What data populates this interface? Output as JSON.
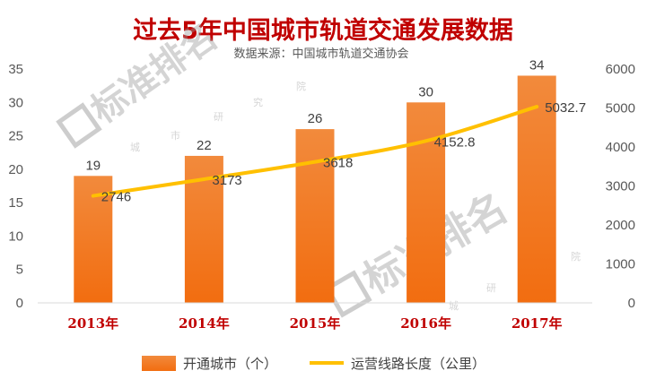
{
  "chart_data": {
    "type": "bar",
    "title": "过去5年中国城市轨道交通发展数据",
    "subtitle": "数据来源：中国城市轨道交通协会",
    "categories": [
      "2013年",
      "2014年",
      "2015年",
      "2016年",
      "2017年"
    ],
    "series": [
      {
        "name": "开通城市（个）",
        "type": "bar",
        "axis": "left",
        "values": [
          19,
          22,
          26,
          30,
          34
        ],
        "color": "#ed7d31"
      },
      {
        "name": "运营线路长度（公里）",
        "type": "line",
        "axis": "right",
        "values": [
          2746,
          3173,
          3618,
          4152.8,
          5032.7
        ],
        "color": "#ffc000"
      }
    ],
    "data_labels": {
      "bars": [
        "19",
        "22",
        "26",
        "30",
        "34"
      ],
      "line": [
        "2746",
        "3173",
        "3618",
        "4152.8",
        "5032.7"
      ]
    },
    "y_left": {
      "ylim": [
        0,
        35
      ],
      "ticks": [
        "0",
        "5",
        "10",
        "15",
        "20",
        "25",
        "30",
        "35"
      ]
    },
    "y_right": {
      "ylim": [
        0,
        6000
      ],
      "ticks": [
        "0",
        "1000",
        "2000",
        "3000",
        "4000",
        "5000",
        "6000"
      ]
    },
    "grid": false,
    "legend_position": "bottom"
  },
  "watermark": {
    "brand": "标准排名",
    "sub_chars": [
      "城",
      "市",
      "研",
      "究",
      "院"
    ]
  }
}
